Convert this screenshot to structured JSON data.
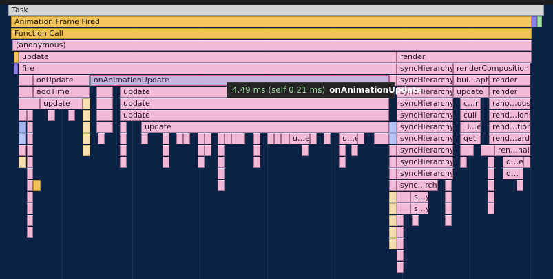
{
  "flame": {
    "labels": {
      "task": "Task",
      "animation_frame_fired": "Animation Frame Fired",
      "function_call": "Function Call",
      "anonymous": "(anonymous)",
      "update": "update",
      "render": "render",
      "fire": "fire",
      "sync_hierarchy": "syncHierarchy",
      "render_composition": "renderComposition",
      "on_update": "onUpdate",
      "on_animation_update": "onAnimationUpdate",
      "bui_aph": "bui…aph",
      "add_time": "addTime",
      "c_n": "c…n",
      "ano_ous": "(ano…ous)",
      "cull": "cull",
      "rend_ions": "rend…ions",
      "i_e": "_i…e",
      "rend_tion": "rend…tion",
      "u_e": "u…e",
      "get": "get",
      "rend_ard": "rend…ard",
      "ren_nal": "ren…nal",
      "d_e": "d…e",
      "d_dots": "d…",
      "sync_rchy": "sync…rchy",
      "s_y": "s…y"
    }
  },
  "tooltip": {
    "time": "4.49 ms (self 0.21 ms)",
    "name": "onAnimationUpdate"
  },
  "colors": {
    "background": "#0c2346",
    "frame_pink": "#f1bad8",
    "animation_gold": "#f0c257",
    "selected": "#c5b3dc"
  }
}
